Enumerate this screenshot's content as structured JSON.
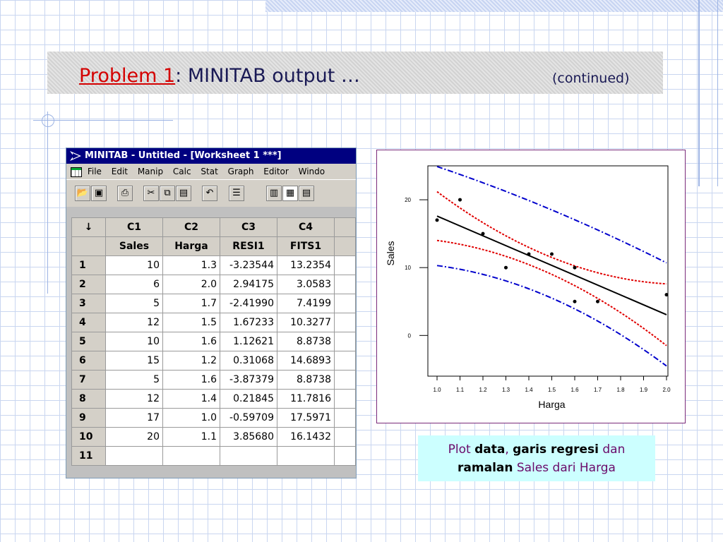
{
  "slide": {
    "title_link": "Problem 1",
    "title_rest": ": MINITAB output …",
    "continued": "(continued)"
  },
  "minitab": {
    "window_title": "MINITAB - Untitled - [Worksheet 1 ***]",
    "menu": [
      "File",
      "Edit",
      "Manip",
      "Calc",
      "Stat",
      "Graph",
      "Editor",
      "Windo"
    ],
    "toolbar_icons": [
      "open-icon",
      "save-icon",
      "print-icon",
      "cut-icon",
      "copy-icon",
      "paste-icon",
      "undo-icon",
      "session-icon",
      "data-window-icon",
      "worksheet-icon",
      "project-manager-icon"
    ],
    "corner": "↓",
    "columns": [
      "C1",
      "C2",
      "C3",
      "C4"
    ],
    "col_names": [
      "Sales",
      "Harga",
      "RESI1",
      "FITS1"
    ],
    "rows": [
      {
        "n": "1",
        "c": [
          "10",
          "1.3",
          "-3.23544",
          "13.2354"
        ]
      },
      {
        "n": "2",
        "c": [
          "6",
          "2.0",
          "2.94175",
          "3.0583"
        ]
      },
      {
        "n": "3",
        "c": [
          "5",
          "1.7",
          "-2.41990",
          "7.4199"
        ]
      },
      {
        "n": "4",
        "c": [
          "12",
          "1.5",
          "1.67233",
          "10.3277"
        ]
      },
      {
        "n": "5",
        "c": [
          "10",
          "1.6",
          "1.12621",
          "8.8738"
        ]
      },
      {
        "n": "6",
        "c": [
          "15",
          "1.2",
          "0.31068",
          "14.6893"
        ]
      },
      {
        "n": "7",
        "c": [
          "5",
          "1.6",
          "-3.87379",
          "8.8738"
        ]
      },
      {
        "n": "8",
        "c": [
          "12",
          "1.4",
          "0.21845",
          "11.7816"
        ]
      },
      {
        "n": "9",
        "c": [
          "17",
          "1.0",
          "-0.59709",
          "17.5971"
        ]
      },
      {
        "n": "10",
        "c": [
          "20",
          "1.1",
          "3.85680",
          "16.1432"
        ]
      },
      {
        "n": "11",
        "c": [
          "",
          "",
          "",
          ""
        ]
      }
    ]
  },
  "chart_data": {
    "type": "scatter",
    "xlabel": "Harga",
    "ylabel": "Sales",
    "xlim": [
      1.0,
      2.0
    ],
    "ylim": [
      -6,
      25
    ],
    "xticks": [
      "1.0",
      "1.1",
      "1.2",
      "1.3",
      "1.4",
      "1.5",
      "1.6",
      "1.7",
      "1.8",
      "1.9",
      "2.0"
    ],
    "yticks": [
      "0",
      "10",
      "20"
    ],
    "points": [
      [
        1.0,
        17
      ],
      [
        1.1,
        20
      ],
      [
        1.2,
        15
      ],
      [
        1.3,
        10
      ],
      [
        1.4,
        12
      ],
      [
        1.5,
        12
      ],
      [
        1.6,
        10
      ],
      [
        1.6,
        5
      ],
      [
        1.7,
        5
      ],
      [
        2.0,
        6
      ]
    ],
    "fit_line": [
      [
        1.0,
        17.5971
      ],
      [
        2.0,
        3.0583
      ]
    ],
    "ci_lower": [
      [
        1.0,
        14
      ],
      [
        1.5,
        9
      ],
      [
        2.0,
        -1.5
      ]
    ],
    "ci_upper": [
      [
        1.0,
        21.2
      ],
      [
        1.5,
        11.5
      ],
      [
        2.0,
        7.6
      ]
    ],
    "pi_lower": [
      [
        1.0,
        10.3
      ],
      [
        1.5,
        5.5
      ],
      [
        2.0,
        -4.5
      ]
    ],
    "pi_upper": [
      [
        1.0,
        24.9
      ],
      [
        1.5,
        18.5
      ],
      [
        2.0,
        10.7
      ]
    ],
    "colors": {
      "fit": "#000000",
      "ci": "#e00000",
      "pi": "#0000cc",
      "points": "#000000"
    }
  },
  "caption": {
    "p1": "Plot ",
    "b1": "data",
    "p2": ", ",
    "b2": "garis regresi",
    "p3": " dan",
    "b3": "ramalan",
    "p4": " Sales dari Harga"
  }
}
